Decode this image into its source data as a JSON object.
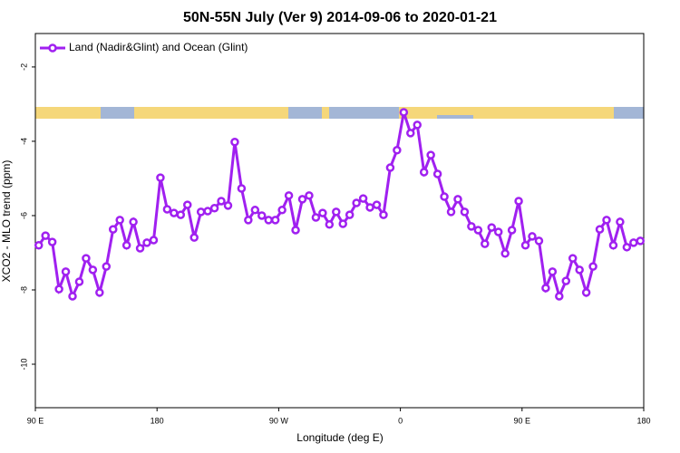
{
  "chart_data": {
    "type": "line",
    "title": "50N-55N July (Ver 9)   2014-09-06 to 2020-01-21",
    "xlabel": "Longitude (deg E)",
    "ylabel": "XCO2 - MLO trend (ppm)",
    "x": [
      92.5,
      97.5,
      102.5,
      107.5,
      112.5,
      117.5,
      122.5,
      127.5,
      132.5,
      137.5,
      142.5,
      147.5,
      152.5,
      157.5,
      162.5,
      167.5,
      172.5,
      177.5,
      182.5,
      187.5,
      192.5,
      197.5,
      202.5,
      207.5,
      212.5,
      217.5,
      222.5,
      227.5,
      232.5,
      237.5,
      242.5,
      247.5,
      252.5,
      257.5,
      262.5,
      267.5,
      272.5,
      277.5,
      282.5,
      287.5,
      292.5,
      297.5,
      302.5,
      307.5,
      312.5,
      317.5,
      322.5,
      327.5,
      332.5,
      337.5,
      342.5,
      347.5,
      352.5,
      357.5,
      362.5,
      367.5,
      372.5,
      377.5,
      382.5,
      387.5,
      392.5,
      397.5,
      402.5,
      407.5,
      412.5,
      417.5,
      422.5,
      427.5,
      432.5,
      437.5,
      442.5,
      447.5,
      452.5,
      457.5,
      462.5,
      467.5,
      472.5,
      477.5,
      482.5,
      487.5,
      492.5,
      497.5,
      502.5,
      507.5,
      512.5,
      517.5,
      522.5,
      527.5,
      532.5,
      537.5
    ],
    "series": [
      {
        "name": "Land (Nadir&Glint) and Ocean (Glint)",
        "color": "#a020f0",
        "values": [
          -6.8,
          -6.54,
          -6.71,
          -7.98,
          -7.51,
          -8.17,
          -7.78,
          -7.15,
          -7.46,
          -8.07,
          -7.37,
          -6.37,
          -6.12,
          -6.8,
          -6.17,
          -6.88,
          -6.73,
          -6.66,
          -4.98,
          -5.83,
          -5.93,
          -5.98,
          -5.71,
          -6.59,
          -5.9,
          -5.88,
          -5.8,
          -5.61,
          -5.73,
          -4.02,
          -5.27,
          -6.12,
          -5.85,
          -6.0,
          -6.12,
          -6.12,
          -5.85,
          -5.46,
          -6.39,
          -5.56,
          -5.46,
          -6.05,
          -5.93,
          -6.24,
          -5.9,
          -6.22,
          -5.98,
          -5.66,
          -5.54,
          -5.78,
          -5.71,
          -5.98,
          -4.71,
          -4.24,
          -3.22,
          -3.78,
          -3.56,
          -4.83,
          -4.37,
          -4.88,
          -5.49,
          -5.9,
          -5.56,
          -5.9,
          -6.29,
          -6.39,
          -6.76,
          -6.32,
          -6.44,
          -7.02,
          -6.39,
          -5.61,
          -6.8,
          -6.56,
          -6.68,
          -7.95,
          -7.51,
          -8.17,
          -7.76,
          -7.15,
          -7.46,
          -8.07,
          -7.37,
          -6.37,
          -6.12,
          -6.8,
          -6.17,
          -6.85,
          -6.73,
          -6.68
        ]
      }
    ],
    "xlim": [
      90,
      540
    ],
    "xticks": [
      {
        "value": 90,
        "label": "90 E"
      },
      180,
      {
        "value": 270,
        "label": "90 W"
      },
      {
        "value": 360,
        "label": "0"
      },
      {
        "value": 450,
        "label": "90 E"
      },
      {
        "value": 540,
        "label": "180"
      }
    ],
    "ylim": [
      -11.17,
      -1.1
    ],
    "yticks": [
      -2,
      -4,
      -6,
      -8,
      -10
    ],
    "legend": "top-left"
  }
}
